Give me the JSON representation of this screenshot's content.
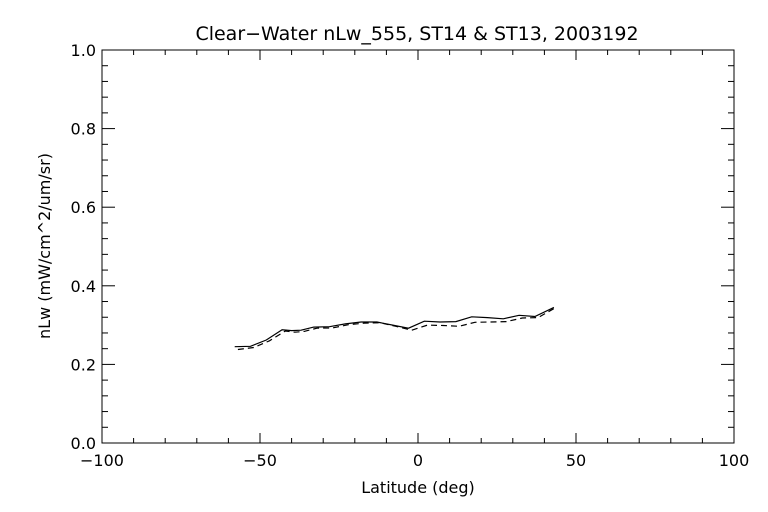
{
  "chart_data": {
    "type": "line",
    "title": "Clear−Water nLw_555, ST14 & ST13, 2003192",
    "xlabel": "Latitude (deg)",
    "ylabel": "nLw (mW/cm^2/um/sr)",
    "xlim": [
      -100,
      100
    ],
    "ylim": [
      0.0,
      1.0
    ],
    "x_ticks": [
      -100,
      -50,
      0,
      50,
      100
    ],
    "x_tick_labels": [
      "−100",
      "−50",
      "0",
      "50",
      "100"
    ],
    "y_ticks": [
      0.0,
      0.2,
      0.4,
      0.6,
      0.8,
      1.0
    ],
    "y_tick_labels": [
      "0.0",
      "0.2",
      "0.4",
      "0.6",
      "0.8",
      "1.0"
    ],
    "grid": false,
    "series": [
      {
        "style": "solid",
        "color": "#000000",
        "x": [
          -58,
          -53,
          -48,
          -43,
          -40,
          -37,
          -33,
          -28,
          -23,
          -18,
          -13,
          -8,
          -3,
          2,
          7,
          12,
          17,
          22,
          27,
          32,
          37,
          43
        ],
        "y": [
          0.245,
          0.246,
          0.262,
          0.288,
          0.286,
          0.287,
          0.295,
          0.296,
          0.303,
          0.308,
          0.308,
          0.3,
          0.292,
          0.31,
          0.308,
          0.309,
          0.321,
          0.319,
          0.316,
          0.325,
          0.322,
          0.345
        ]
      },
      {
        "style": "dashed",
        "color": "#000000",
        "x": [
          -57,
          -52,
          -47,
          -42,
          -39,
          -36,
          -32,
          -27,
          -22,
          -17,
          -12,
          -7,
          -2,
          3,
          8,
          13,
          18,
          23,
          28,
          33,
          38,
          43
        ],
        "y": [
          0.238,
          0.243,
          0.26,
          0.285,
          0.282,
          0.284,
          0.292,
          0.293,
          0.301,
          0.305,
          0.306,
          0.297,
          0.287,
          0.3,
          0.299,
          0.297,
          0.307,
          0.308,
          0.309,
          0.318,
          0.319,
          0.342
        ]
      }
    ]
  }
}
